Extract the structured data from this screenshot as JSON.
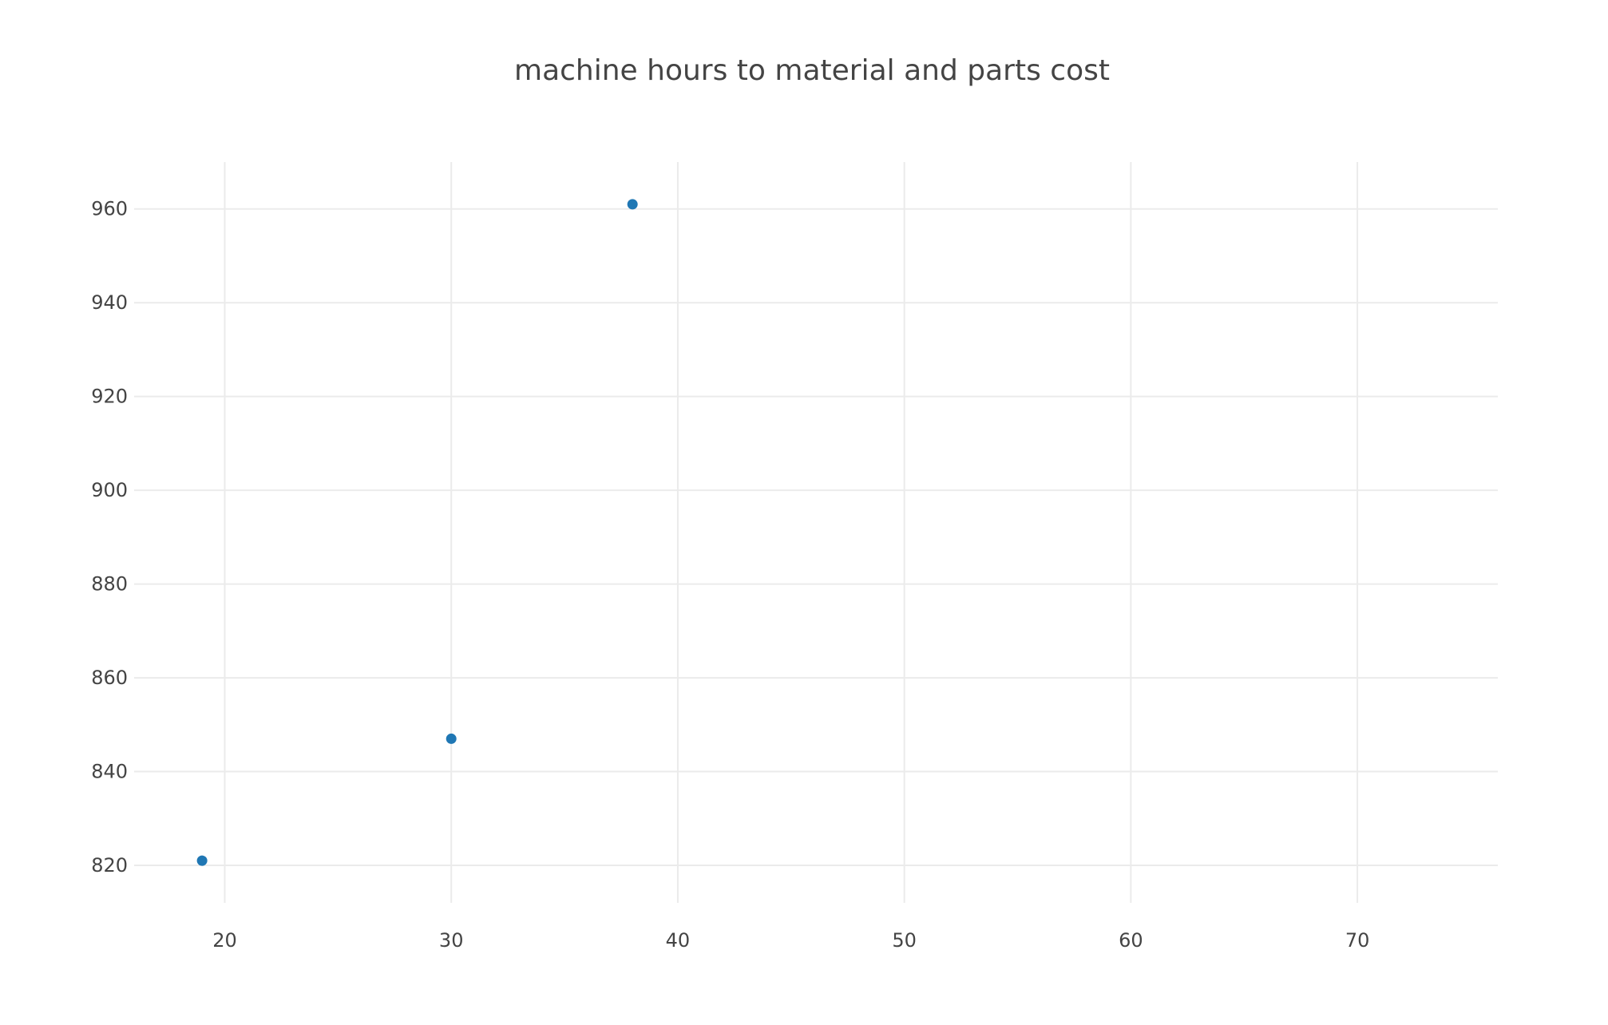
{
  "chart_data": {
    "type": "scatter",
    "title": "machine hours to material and parts cost",
    "xlabel": "",
    "ylabel": "",
    "xlim": [
      16,
      76.2
    ],
    "ylim": [
      812,
      970
    ],
    "x_ticks": [
      20,
      30,
      40,
      50,
      60,
      70
    ],
    "y_ticks": [
      820,
      840,
      860,
      880,
      900,
      920,
      940,
      960
    ],
    "grid": true,
    "legend": "none",
    "marker_color": "#1f77b4",
    "series": [
      {
        "points": [
          {
            "x": 19,
            "y": 821
          },
          {
            "x": 30,
            "y": 847
          },
          {
            "x": 38,
            "y": 961
          }
        ]
      }
    ]
  }
}
